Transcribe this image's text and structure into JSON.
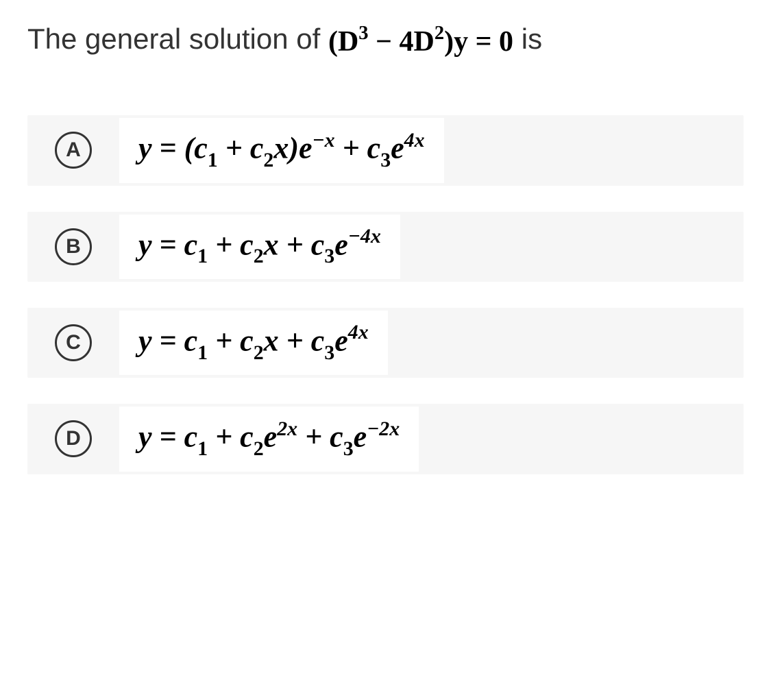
{
  "question": {
    "prefix": "The general solution of ",
    "equation_html": "(<span class='rm'>D</span><span class='sup'>3</span> − 4<span class='rm'>D</span><span class='sup'>2</span>)y = 0",
    "suffix": " is"
  },
  "options": [
    {
      "letter": "A",
      "formula_html": "y = (c<span class='sub'>1</span> + c<span class='sub'>2</span>x)e<span class='supit'>−x</span> + c<span class='sub'>3</span>e<span class='supit'>4x</span>"
    },
    {
      "letter": "B",
      "formula_html": "y = c<span class='sub'>1</span> + c<span class='sub'>2</span>x + c<span class='sub'>3</span>e<span class='supit'>−4x</span>"
    },
    {
      "letter": "C",
      "formula_html": "y = c<span class='sub'>1</span> + c<span class='sub'>2</span>x + c<span class='sub'>3</span>e<span class='supit'>4x</span>"
    },
    {
      "letter": "D",
      "formula_html": "y = c<span class='sub'>1</span> + c<span class='sub'>2</span>e<span class='supit'>2x</span> + c<span class='sub'>3</span>e<span class='supit'>−2x</span>"
    }
  ],
  "styles": {
    "background_color": "#ffffff",
    "option_bg": "#f6f6f6",
    "math_bg": "#ffffff",
    "text_color": "#333333",
    "math_color": "#000000",
    "question_fontsize": 42,
    "option_letter_fontsize": 30,
    "option_math_fontsize": 44,
    "circle_border_width": 3,
    "circle_size": 54
  }
}
